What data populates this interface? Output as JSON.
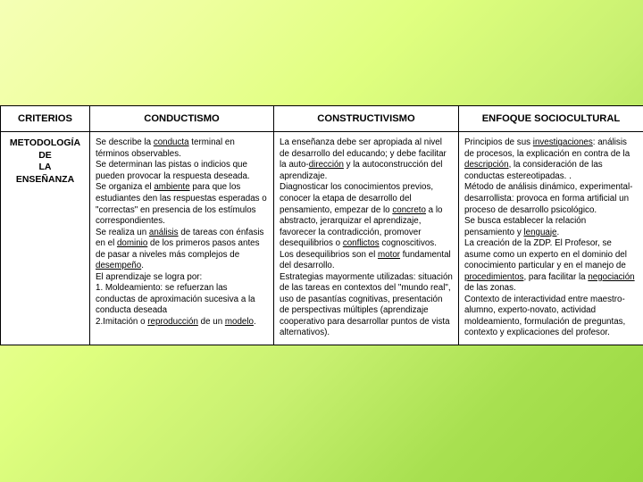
{
  "type": "table",
  "headers": {
    "criterios": "CRITERIOS",
    "conductismo": "CONDUCTISMO",
    "constructivismo": "CONSTRUCTIVISMO",
    "sociocultural": "ENFOQUE SOCIOCULTURAL"
  },
  "rowheader": {
    "l1": "METODOLOGÍA DE",
    "l2": "LA",
    "l3": "ENSEÑANZA"
  },
  "cond": {
    "p1a": "Se describe la ",
    "p1u": "conducta",
    "p1b": " terminal en términos observables.",
    "p2": "Se determinan las pistas o indicios que pueden provocar la respuesta deseada.",
    "p3a": "Se organiza el ",
    "p3u": "ambiente",
    "p3b": " para que los estudiantes den las respuestas esperadas o \"correctas\" en presencia de los estímulos correspondientes.",
    "p4a": "Se realiza un ",
    "p4u1": "análisis",
    "p4b": " de tareas con énfasis en el ",
    "p4u2": "dominio",
    "p4c": " de los primeros pasos antes de pasar a niveles más complejos de ",
    "p4u3": "desempeño",
    "p4d": ".",
    "p5": "El aprendizaje se logra por:",
    "p6": "1. Moldeamiento: se refuerzan las conductas de aproximación sucesiva a la conducta deseada",
    "p7a": "2.Imitación o ",
    "p7u1": "reproducción",
    "p7b": " de un ",
    "p7u2": "modelo",
    "p7c": "."
  },
  "cons": {
    "p1a": "La enseñanza debe ser  apropiada al nivel de desarrollo del educando; y debe facilitar la auto-",
    "p1u": "dirección",
    "p1b": " y la autoconstrucción del aprendizaje.",
    "p2a": "Diagnosticar los conocimientos previos, conocer la etapa de desarrollo del pensamiento, empezar de lo ",
    "p2u1": "concreto",
    "p2b": " a lo abstracto, jerarquizar el aprendizaje, favorecer la contradicción, promover desequilibrios o ",
    "p2u2": "conflictos",
    "p2c": " cognoscitivos. Los desequilibrios son el ",
    "p2u3": "motor",
    "p2d": " fundamental del desarrollo.",
    "p3": "Estrategias mayormente utilizadas: situación de las tareas en contextos del \"mundo real\", uso de pasantías cognitivas, presentación de perspectivas múltiples (aprendizaje cooperativo para desarrollar puntos de vista alternativos)."
  },
  "soc": {
    "p1a": "Principios de sus ",
    "p1u": "investigaciones",
    "p1b": ": análisis de procesos, la explicación en contra de la ",
    "p1u2": "descripción",
    "p1c": ", la consideración de las conductas estereotipadas. .",
    "p2": "Método de análisis dinámico, experimental-desarrollista: provoca en forma artificial un proceso de desarrollo psicológico.",
    "p3a": "Se busca establecer la relación pensamiento y ",
    "p3u": "lenguaje",
    "p3b": ".",
    "p4a": "La creación de la ZDP. El Profesor, se asume como un experto en el dominio del conocimiento particular y en el manejo de ",
    "p4u1": "procedimientos",
    "p4b": ", para facilitar la ",
    "p4u2": "negociación",
    "p4c": " de las zonas.",
    "p5": "Contexto de interactividad entre maestro-alumno, experto-novato, actividad moldeamiento, formulación de preguntas, contexto y explicaciones del profesor."
  }
}
